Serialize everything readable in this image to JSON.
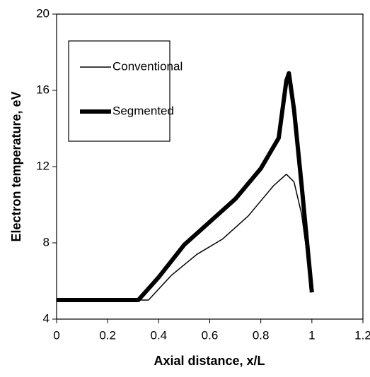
{
  "chart_data": {
    "type": "line",
    "xlabel": "Axial distance, x/L",
    "ylabel": "Electron temperature, eV",
    "xlim": [
      0,
      1.2
    ],
    "ylim": [
      4,
      20
    ],
    "xticks": [
      0,
      0.2,
      0.4,
      0.6,
      0.8,
      1,
      1.2
    ],
    "yticks": [
      4,
      8,
      12,
      16,
      20
    ],
    "legend": "upper left",
    "series": [
      {
        "name": "Conventional",
        "color": "#000000",
        "width": 1.5,
        "x": [
          0,
          0.2,
          0.36,
          0.45,
          0.55,
          0.65,
          0.75,
          0.85,
          0.9,
          0.93,
          0.96,
          1.0
        ],
        "values": [
          5,
          5,
          5,
          6.3,
          7.4,
          8.2,
          9.4,
          11,
          11.6,
          11.2,
          9.5,
          5.5
        ]
      },
      {
        "name": "Segmented",
        "color": "#000000",
        "width": 6,
        "x": [
          0,
          0.2,
          0.32,
          0.4,
          0.5,
          0.6,
          0.7,
          0.8,
          0.87,
          0.9,
          0.91,
          0.93,
          0.96,
          1.0
        ],
        "values": [
          5,
          5,
          5,
          6.2,
          7.9,
          9.1,
          10.3,
          11.9,
          13.5,
          16.5,
          16.9,
          15,
          11,
          5.4
        ]
      }
    ]
  }
}
